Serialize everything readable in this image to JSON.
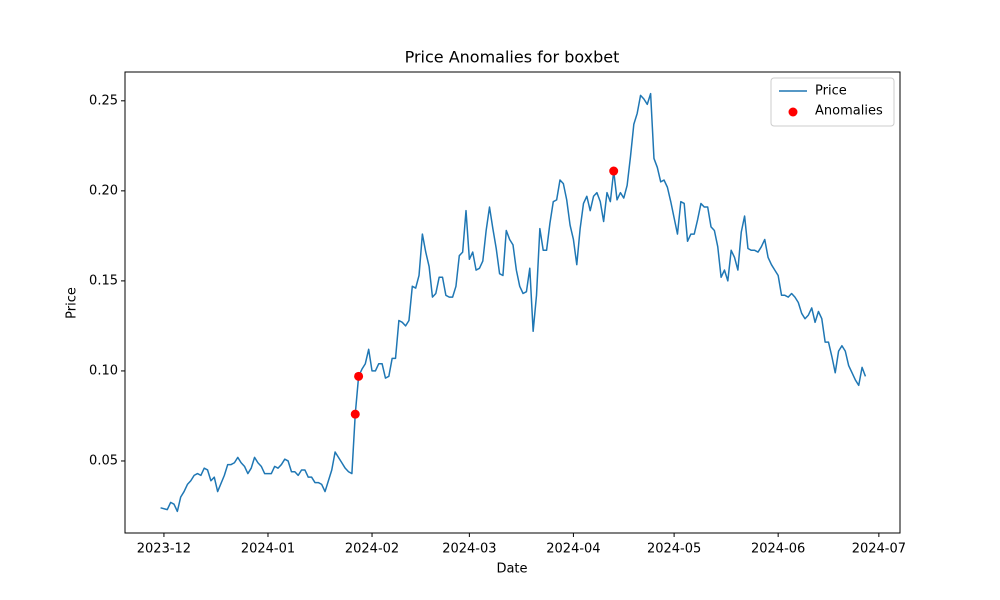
{
  "chart_data": {
    "type": "line",
    "title": "Price Anomalies for boxbet",
    "xlabel": "Date",
    "ylabel": "Price",
    "xlim": [
      -11.6,
      219.3
    ],
    "ylim": [
      0.01,
      0.266
    ],
    "xticks": [
      {
        "value": 0,
        "label": "2023-12"
      },
      {
        "value": 31,
        "label": "2024-01"
      },
      {
        "value": 62,
        "label": "2024-02"
      },
      {
        "value": 91,
        "label": "2024-03"
      },
      {
        "value": 122,
        "label": "2024-04"
      },
      {
        "value": 152,
        "label": "2024-05"
      },
      {
        "value": 183,
        "label": "2024-06"
      },
      {
        "value": 213,
        "label": "2024-07"
      }
    ],
    "yticks": [
      0.05,
      {
        "value": 0.1,
        "label": "0.10"
      },
      0.15,
      {
        "value": 0.2,
        "label": "0.20"
      },
      0.25
    ],
    "legend": "upper right",
    "series": [
      {
        "name": "Price",
        "type": "line",
        "color": "#1f77b4",
        "x": [
          -1,
          1,
          2,
          3,
          4,
          5,
          6,
          7,
          8,
          9,
          10,
          11,
          12,
          13,
          14,
          15,
          16,
          18,
          19,
          20,
          21,
          22,
          23,
          24,
          25,
          26,
          27,
          28,
          29,
          30,
          31,
          32,
          33,
          34,
          35,
          36,
          37,
          38,
          39,
          40,
          41,
          42,
          43,
          44,
          45,
          46,
          47,
          48,
          50,
          51,
          52,
          53,
          54,
          55,
          56,
          57,
          58,
          59,
          60,
          61,
          62,
          63,
          64,
          65,
          66,
          67,
          68,
          69,
          70,
          71,
          72,
          73,
          74,
          75,
          76,
          77,
          78,
          79,
          80,
          81,
          82,
          83,
          84,
          85,
          86,
          87,
          88,
          89,
          90,
          91,
          92,
          93,
          94,
          95,
          96,
          97,
          98,
          99,
          100,
          101,
          102,
          103,
          104,
          105,
          106,
          107,
          108,
          109,
          110,
          111,
          112,
          113,
          114,
          115,
          116,
          117,
          118,
          119,
          120,
          121,
          122,
          123,
          124,
          125,
          126,
          127,
          128,
          129,
          130,
          131,
          132,
          133,
          134,
          135,
          136,
          137,
          138,
          139,
          140,
          141,
          142,
          143,
          144,
          145,
          146,
          147,
          148,
          149,
          150,
          151,
          152,
          153,
          154,
          155,
          156,
          157,
          158,
          159,
          160,
          161,
          162,
          163,
          164,
          165,
          166,
          167,
          168,
          169,
          170,
          171,
          172,
          173,
          174,
          175,
          176,
          177,
          178,
          179,
          180,
          181,
          182,
          183,
          184,
          185,
          186,
          187,
          188,
          189,
          190,
          191,
          192,
          193,
          194,
          195,
          196,
          197,
          198,
          199,
          200,
          201,
          202,
          203,
          204,
          205,
          206,
          207,
          208,
          209
        ],
        "values": [
          0.024,
          0.023,
          0.027,
          0.026,
          0.022,
          0.03,
          0.033,
          0.037,
          0.039,
          0.042,
          0.043,
          0.042,
          0.046,
          0.045,
          0.039,
          0.041,
          0.033,
          0.042,
          0.048,
          0.048,
          0.049,
          0.052,
          0.049,
          0.047,
          0.043,
          0.046,
          0.052,
          0.049,
          0.047,
          0.043,
          0.043,
          0.043,
          0.047,
          0.046,
          0.048,
          0.051,
          0.05,
          0.044,
          0.044,
          0.042,
          0.045,
          0.045,
          0.041,
          0.041,
          0.038,
          0.038,
          0.037,
          0.033,
          0.045,
          0.055,
          0.052,
          0.049,
          0.046,
          0.044,
          0.043,
          0.076,
          0.097,
          0.101,
          0.104,
          0.112,
          0.1,
          0.1,
          0.104,
          0.104,
          0.096,
          0.097,
          0.107,
          0.107,
          0.128,
          0.127,
          0.125,
          0.128,
          0.147,
          0.146,
          0.153,
          0.176,
          0.166,
          0.158,
          0.141,
          0.143,
          0.152,
          0.152,
          0.142,
          0.141,
          0.141,
          0.147,
          0.164,
          0.166,
          0.189,
          0.162,
          0.166,
          0.156,
          0.157,
          0.161,
          0.178,
          0.191,
          0.179,
          0.168,
          0.154,
          0.153,
          0.178,
          0.173,
          0.17,
          0.156,
          0.147,
          0.143,
          0.144,
          0.157,
          0.122,
          0.142,
          0.179,
          0.167,
          0.167,
          0.182,
          0.194,
          0.195,
          0.206,
          0.204,
          0.195,
          0.181,
          0.173,
          0.159,
          0.179,
          0.193,
          0.197,
          0.189,
          0.197,
          0.199,
          0.194,
          0.183,
          0.199,
          0.194,
          0.211,
          0.195,
          0.199,
          0.196,
          0.203,
          0.219,
          0.237,
          0.243,
          0.253,
          0.251,
          0.248,
          0.254,
          0.218,
          0.213,
          0.205,
          0.206,
          0.202,
          0.194,
          0.185,
          0.176,
          0.194,
          0.193,
          0.172,
          0.176,
          0.176,
          0.184,
          0.193,
          0.191,
          0.191,
          0.18,
          0.178,
          0.169,
          0.152,
          0.156,
          0.15,
          0.167,
          0.163,
          0.156,
          0.177,
          0.186,
          0.168,
          0.167,
          0.167,
          0.166,
          0.169,
          0.173,
          0.163,
          0.159,
          0.156,
          0.153,
          0.142,
          0.142,
          0.141,
          0.143,
          0.141,
          0.138,
          0.132,
          0.129,
          0.131,
          0.135,
          0.127,
          0.133,
          0.129,
          0.116,
          0.116,
          0.108,
          0.099,
          0.111,
          0.114,
          0.111,
          0.103,
          0.099,
          0.095,
          0.092,
          0.102,
          0.097
        ]
      },
      {
        "name": "Anomalies",
        "type": "scatter",
        "color": "#ff0000",
        "x": [
          57,
          58,
          134
        ],
        "values": [
          0.076,
          0.097,
          0.211
        ]
      }
    ]
  }
}
